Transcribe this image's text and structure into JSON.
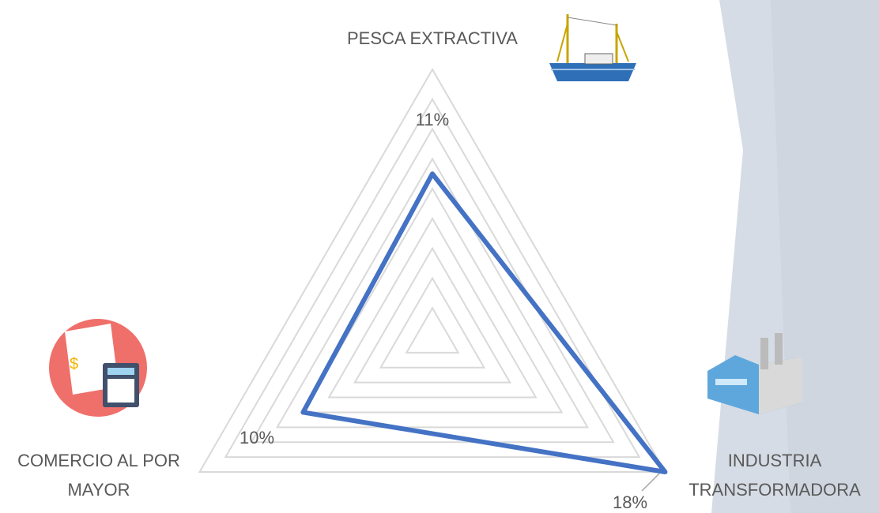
{
  "chart_data": {
    "type": "radar",
    "categories": [
      "PESCA EXTRACTIVA",
      [
        "INDUSTRIA",
        "TRANSFORMADORA"
      ],
      [
        "COMERCIO AL POR",
        "MAYOR"
      ]
    ],
    "values": [
      11,
      18,
      10
    ],
    "value_labels": [
      "11%",
      "18%",
      "10%"
    ],
    "color": "#4472c4",
    "ylim": [
      0,
      18
    ],
    "yticks": [
      2,
      4,
      6,
      8,
      10,
      12,
      14,
      16,
      18
    ],
    "grid": true
  }
}
